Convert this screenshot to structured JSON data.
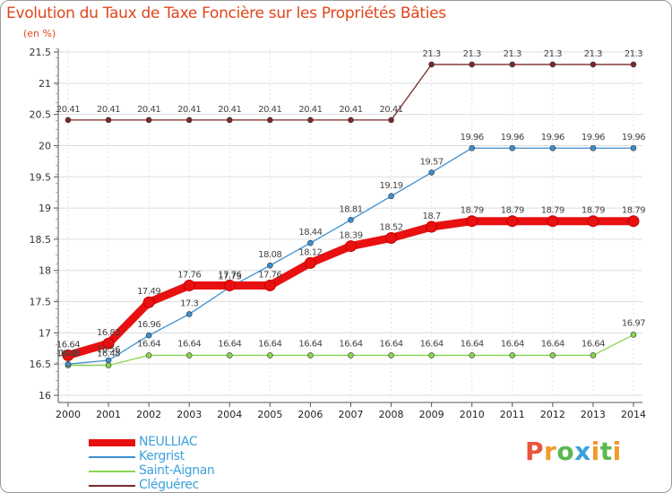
{
  "header": {
    "title": "Evolution du Taux de Taxe Foncière sur les Propriétés Bâties",
    "unit": "(en %)"
  },
  "brand": {
    "letters": [
      "P",
      "r",
      "o",
      "x",
      "i",
      "t",
      "i"
    ],
    "colors": [
      "#e8553a",
      "#f29a2e",
      "#5cb84e",
      "#3da1dc",
      "#f29a2e",
      "#5cb84e",
      "#f29a2e"
    ]
  },
  "chart_data": {
    "type": "line",
    "title": "Evolution du Taux de Taxe Foncière sur les Propriétés Bâties",
    "ylabel": "(en %)",
    "xlabel": "",
    "ylim": [
      16,
      21.5
    ],
    "yticks": [
      "16",
      "16.5",
      "17",
      "17.5",
      "18",
      "18.5",
      "19",
      "19.5",
      "20",
      "20.5",
      "21",
      "21.5"
    ],
    "categories": [
      "2000",
      "2001",
      "2002",
      "2003",
      "2004",
      "2005",
      "2006",
      "2007",
      "2008",
      "2009",
      "2010",
      "2011",
      "2012",
      "2013",
      "2014"
    ],
    "series": [
      {
        "name": "NEULLIAC",
        "color": "#e81010",
        "values": [
          16.64,
          16.83,
          17.49,
          17.76,
          17.76,
          17.76,
          18.12,
          18.39,
          18.52,
          18.7,
          18.79,
          18.79,
          18.79,
          18.79,
          18.79
        ],
        "labels": [
          "16.64",
          "16.83",
          "17.49",
          "17.76",
          "17.76",
          "17.76",
          "18.12",
          "18.39",
          "18.52",
          "18.7",
          "18.79",
          "18.79",
          "18.79",
          "18.79",
          "18.79"
        ]
      },
      {
        "name": "Kergrist",
        "color": "#3c8fd0",
        "values": [
          16.5,
          16.56,
          16.96,
          17.3,
          17.73,
          18.08,
          18.44,
          18.81,
          19.19,
          19.57,
          19.96,
          19.96,
          19.96,
          19.96,
          19.96
        ],
        "labels": [
          "16.5",
          "16.56",
          "16.96",
          "17.3",
          "17.73",
          "18.08",
          "18.44",
          "18.81",
          "19.19",
          "19.57",
          "19.96",
          "19.96",
          "19.96",
          "19.96",
          "19.96"
        ]
      },
      {
        "name": "Saint-Aignan",
        "color": "#86d64c",
        "values": [
          16.48,
          16.48,
          16.64,
          16.64,
          16.64,
          16.64,
          16.64,
          16.64,
          16.64,
          16.64,
          16.64,
          16.64,
          16.64,
          16.64,
          16.97
        ],
        "labels": [
          "16.48",
          "16.48",
          "16.64",
          "16.64",
          "16.64",
          "16.64",
          "16.64",
          "16.64",
          "16.64",
          "16.64",
          "16.64",
          "16.64",
          "16.64",
          "16.64",
          "16.97"
        ]
      },
      {
        "name": "Cléguérec",
        "color": "#7a2a2a",
        "values": [
          20.41,
          20.41,
          20.41,
          20.41,
          20.41,
          20.41,
          20.41,
          20.41,
          20.41,
          21.3,
          21.3,
          21.3,
          21.3,
          21.3,
          21.3
        ],
        "labels": [
          "20.41",
          "20.41",
          "20.41",
          "20.41",
          "20.41",
          "20.41",
          "20.41",
          "20.41",
          "20.41",
          "21.3",
          "21.3",
          "21.3",
          "21.3",
          "21.3",
          "21.3"
        ]
      }
    ]
  }
}
